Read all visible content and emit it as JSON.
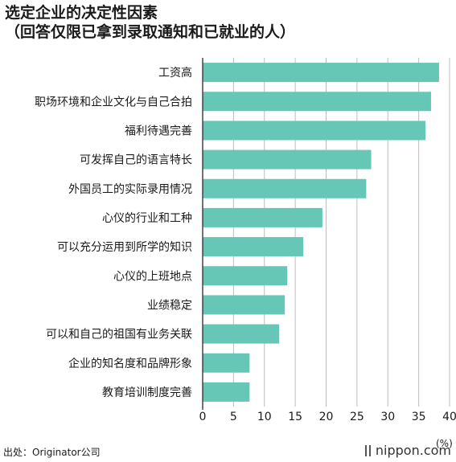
{
  "title_line1": "选定企业的决定性因素",
  "title_line2": "（回答仅限已拿到录取通知和已就业的人）",
  "unit": "(%)",
  "source": "出处：Originator公司",
  "brand": "nippon.com",
  "colors": {
    "bar": "#66c7b6",
    "grid": "#bdbdbd",
    "axis": "#444444"
  },
  "chart_data": {
    "type": "bar",
    "orientation": "horizontal",
    "title": "选定企业的决定性因素（回答仅限已拿到录取通知和已就业的人）",
    "xlabel": "(%)",
    "ylabel": "",
    "xlim": [
      0,
      40
    ],
    "xticks": [
      0,
      5,
      10,
      15,
      20,
      25,
      30,
      35,
      40
    ],
    "grid": true,
    "categories": [
      "工资高",
      "职场环境和企业文化与自己合拍",
      "福利待遇完善",
      "可发挥自己的语言特长",
      "外国员工的实际录用情况",
      "心仪的行业和工种",
      "可以充分运用到所学的知识",
      "心仪的上班地点",
      "业绩稳定",
      "可以和自己的祖国有业务关联",
      "企业的知名度和品牌形象",
      "教育培训制度完善"
    ],
    "values": [
      38.3,
      37.0,
      36.1,
      27.3,
      26.5,
      19.4,
      16.3,
      13.7,
      13.3,
      12.4,
      7.6,
      7.6
    ]
  }
}
